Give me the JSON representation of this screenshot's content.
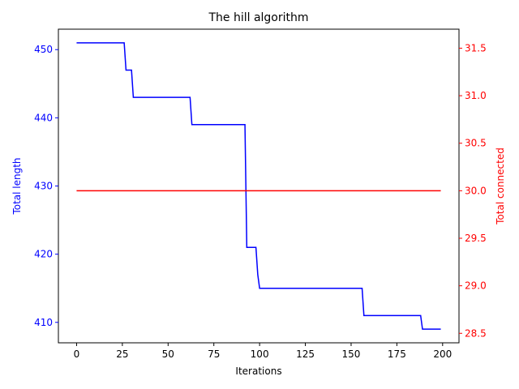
{
  "chart_data": {
    "type": "line",
    "title": "The hill algorithm",
    "xlabel": "Iterations",
    "xlim": [
      -9.95,
      208.95
    ],
    "xticks": [
      0,
      25,
      50,
      75,
      100,
      125,
      150,
      175,
      200
    ],
    "xtick_labels": [
      "0",
      "25",
      "50",
      "75",
      "100",
      "125",
      "150",
      "175",
      "200"
    ],
    "y_left": {
      "label": "Total length",
      "color": "#0000ff",
      "lim": [
        407,
        453
      ],
      "ticks": [
        410,
        420,
        430,
        440,
        450
      ],
      "tick_labels": [
        "410",
        "420",
        "430",
        "440",
        "450"
      ]
    },
    "y_right": {
      "label": "Total connected",
      "color": "#ff0000",
      "lim": [
        28.4,
        31.7
      ],
      "ticks": [
        28.5,
        29.0,
        29.5,
        30.0,
        30.5,
        31.0,
        31.5
      ],
      "tick_labels": [
        "28.5",
        "29.0",
        "29.5",
        "30.0",
        "30.5",
        "31.0",
        "31.5"
      ]
    },
    "series": [
      {
        "axis": "left",
        "color": "#0000ff",
        "x": [
          0,
          26,
          27,
          30,
          31,
          62,
          63,
          92,
          93,
          98,
          99,
          100,
          156,
          157,
          188,
          189,
          199
        ],
        "y": [
          451,
          451,
          447,
          447,
          443,
          443,
          439,
          439,
          421,
          421,
          417,
          415,
          415,
          411,
          411,
          409,
          409
        ]
      },
      {
        "axis": "right",
        "color": "#ff0000",
        "x": [
          0,
          199
        ],
        "y": [
          30,
          30
        ]
      }
    ]
  }
}
